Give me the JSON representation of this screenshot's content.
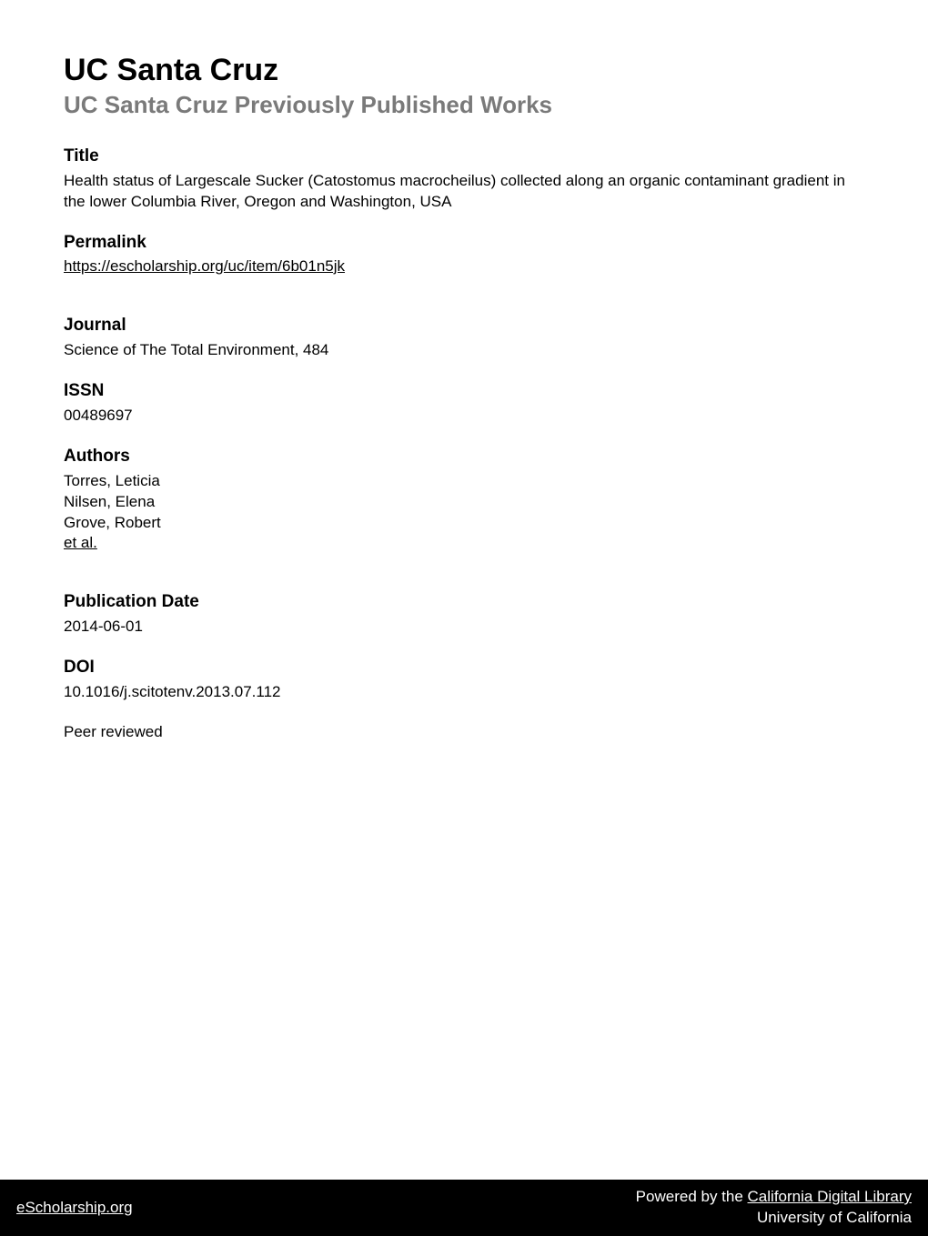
{
  "header": {
    "main_title": "UC Santa Cruz",
    "subtitle": "UC Santa Cruz Previously Published Works"
  },
  "sections": {
    "title": {
      "heading": "Title",
      "body": "Health status of Largescale Sucker (Catostomus macrocheilus) collected along an organic contaminant gradient in the lower Columbia River, Oregon and Washington, USA"
    },
    "permalink": {
      "heading": "Permalink",
      "url": "https://escholarship.org/uc/item/6b01n5jk"
    },
    "journal": {
      "heading": "Journal",
      "body": "Science of The Total Environment, 484"
    },
    "issn": {
      "heading": "ISSN",
      "body": "00489697"
    },
    "authors": {
      "heading": "Authors",
      "list": [
        "Torres, Leticia",
        "Nilsen, Elena",
        "Grove, Robert"
      ],
      "et_al": "et al."
    },
    "publication_date": {
      "heading": "Publication Date",
      "body": "2014-06-01"
    },
    "doi": {
      "heading": "DOI",
      "body": "10.1016/j.scitotenv.2013.07.112"
    },
    "peer_reviewed": {
      "body": "Peer reviewed"
    }
  },
  "footer": {
    "left_link": "eScholarship.org",
    "right_prefix": "Powered by the ",
    "right_link": "California Digital Library",
    "right_line2": "University of California"
  },
  "colors": {
    "subtitle_gray": "#7a7a7a",
    "text_black": "#000000",
    "footer_bg": "#000000",
    "footer_text": "#ffffff",
    "page_bg": "#ffffff"
  },
  "typography": {
    "main_title_size": 34,
    "subtitle_size": 26,
    "section_heading_size": 19,
    "body_size": 17,
    "footer_size": 17
  }
}
